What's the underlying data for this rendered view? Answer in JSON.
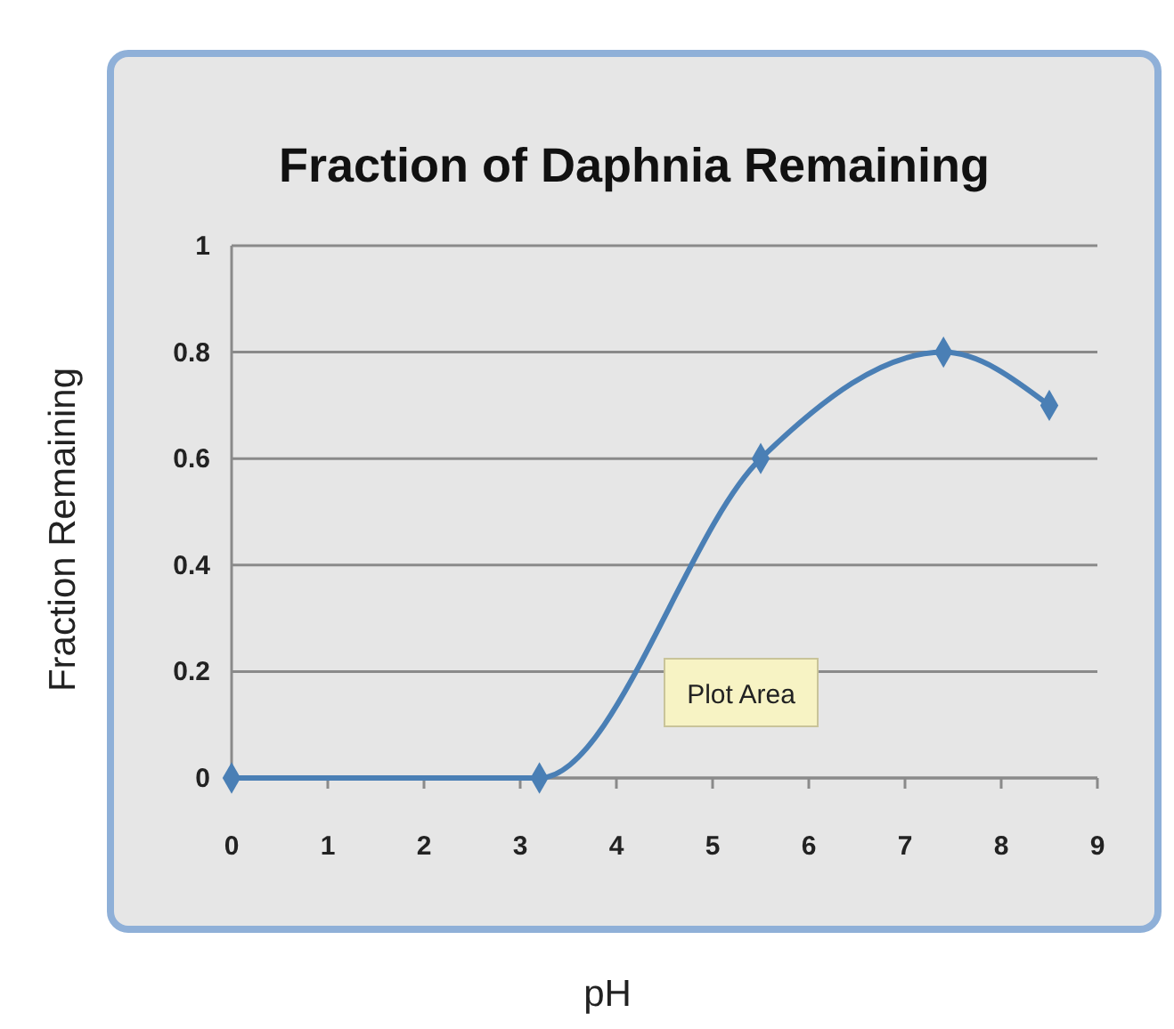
{
  "chart_data": {
    "type": "line",
    "title": "Fraction of Daphnia Remaining",
    "xlabel": "pH",
    "ylabel": "Fraction Remaining",
    "x": [
      0,
      3.2,
      5.5,
      7.4,
      8.5
    ],
    "series": [
      {
        "color": "#4a7fb5",
        "values": [
          0,
          0,
          0.6,
          0.8,
          0.7
        ]
      }
    ],
    "xlim": [
      0,
      9
    ],
    "xticks": [
      0,
      1,
      2,
      3,
      4,
      5,
      6,
      7,
      8,
      9
    ],
    "ylim": [
      0,
      1
    ],
    "yticks": [
      0,
      0.2,
      0.4,
      0.6,
      0.8,
      1
    ],
    "grid": "y",
    "marker": "diamond",
    "line_style": "solid",
    "annotations": [
      "Plot Area"
    ]
  }
}
